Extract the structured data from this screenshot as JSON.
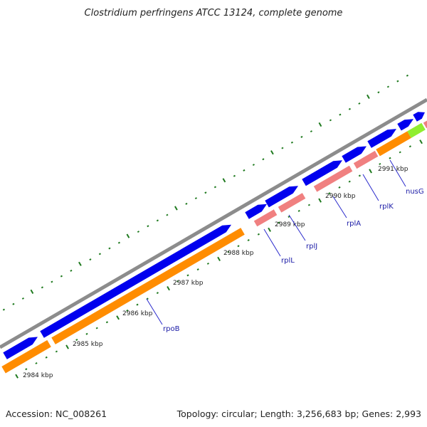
{
  "title": "Clostridium perfringens ATCC 13124, complete genome",
  "footer": {
    "accession": "Accession: NC_008261",
    "summary": "Topology: circular; Length: 3,256,683 bp; Genes: 2,993"
  },
  "colors": {
    "backbone": "#8c8c8c",
    "cds_forward": "#0000ee",
    "cds_reverse": "#ff8c00",
    "rna_pink": "#f08080",
    "rna_green": "#90ee30",
    "tick": "#1f7a1f",
    "gene_label": "#1a1aa6"
  },
  "kbp_labels": [
    "2984 kbp",
    "2985 kbp",
    "2986 kbp",
    "2987 kbp",
    "2988 kbp",
    "2989 kbp",
    "2990 kbp",
    "2991 kbp"
  ],
  "genes": [
    "rpoB",
    "rplL",
    "rplJ",
    "rplA",
    "rplK",
    "nusG"
  ]
}
